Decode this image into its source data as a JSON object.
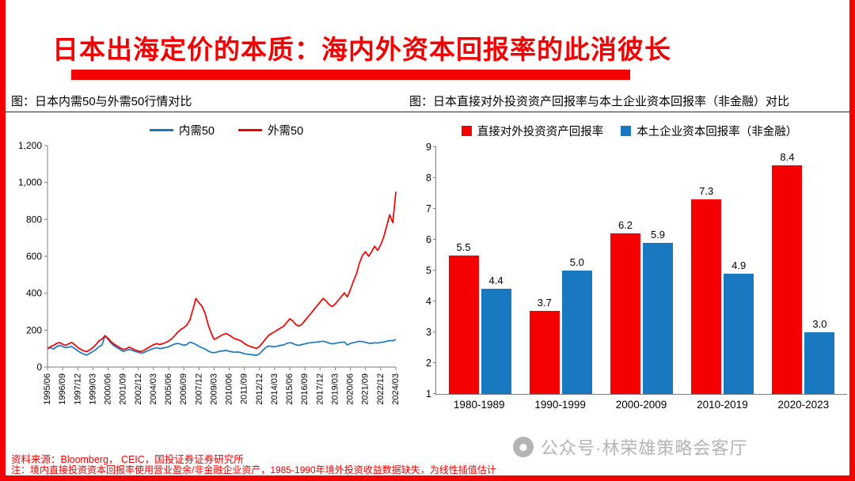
{
  "slide": {
    "title": "日本出海定价的本质：海内外资本回报率的此消彼长",
    "left_caption": "图：日本内需50与外需50行情对比",
    "right_caption": "图：日本直接对外投资资产回报率与本土企业资本回报率（非金融）对比",
    "watermark": "公众号·林荣雄策略会客厅",
    "source": "资料来源：Bloomberg， CEIC，国投证券证券研究所",
    "note": "注：境内直接投资资本回报率使用营业盈余/非金融企业资产，1985-1990年境外投资收益数据缺失，为线性插值估计"
  },
  "colors": {
    "red": "#f40000",
    "blue": "#1879c0",
    "axis": "#7f7f7f",
    "watermark_gray": "#b4b4b4"
  },
  "chart_data": [
    {
      "type": "line",
      "title": "日本内需50与外需50行情对比",
      "ylim": [
        0,
        1200
      ],
      "ytick_labels": [
        "0",
        "200",
        "400",
        "600",
        "800",
        "1,000",
        "1,200"
      ],
      "x_tick_labels": [
        "1995/06",
        "1996/09",
        "1997/12",
        "1999/03",
        "2000/06",
        "2001/09",
        "2002/12",
        "2004/03",
        "2005/06",
        "2006/09",
        "2007/12",
        "2009/03",
        "2010/06",
        "2011/09",
        "2012/12",
        "2014/03",
        "2015/06",
        "2016/09",
        "2017/12",
        "2019/03",
        "2020/06",
        "2021/09",
        "2022/12",
        "2024/03"
      ],
      "tick_every": 5,
      "grid": false,
      "legend_position": "top",
      "series": [
        {
          "name": "内需50",
          "color_key": "blue",
          "values": [
            100,
            105,
            98,
            110,
            118,
            112,
            105,
            108,
            112,
            100,
            88,
            78,
            70,
            65,
            75,
            85,
            95,
            110,
            120,
            170,
            150,
            130,
            115,
            105,
            95,
            85,
            90,
            95,
            90,
            85,
            80,
            75,
            80,
            88,
            95,
            100,
            105,
            100,
            103,
            106,
            110,
            118,
            125,
            128,
            124,
            118,
            122,
            135,
            130,
            122,
            112,
            105,
            98,
            88,
            80,
            78,
            82,
            86,
            88,
            90,
            86,
            82,
            80,
            82,
            78,
            72,
            70,
            68,
            66,
            64,
            72,
            90,
            105,
            115,
            112,
            110,
            114,
            118,
            120,
            128,
            132,
            128,
            120,
            118,
            122,
            126,
            130,
            132,
            134,
            136,
            138,
            140,
            136,
            130,
            126,
            128,
            132,
            134,
            136,
            120,
            128,
            132,
            136,
            140,
            138,
            134,
            130,
            128,
            132,
            130,
            134,
            136,
            140,
            144,
            142,
            150
          ]
        },
        {
          "name": "外需50",
          "color_key": "red",
          "values": [
            100,
            110,
            118,
            128,
            133,
            124,
            118,
            126,
            134,
            121,
            106,
            96,
            88,
            84,
            94,
            106,
            122,
            142,
            152,
            170,
            156,
            138,
            124,
            114,
            104,
            95,
            100,
            108,
            100,
            92,
            87,
            84,
            92,
            103,
            112,
            121,
            127,
            122,
            127,
            133,
            141,
            153,
            170,
            190,
            203,
            214,
            228,
            255,
            312,
            372,
            348,
            330,
            292,
            232,
            186,
            150,
            158,
            168,
            176,
            182,
            173,
            162,
            152,
            148,
            140,
            128,
            118,
            112,
            106,
            101,
            112,
            132,
            152,
            172,
            182,
            192,
            202,
            212,
            222,
            242,
            262,
            250,
            230,
            222,
            232,
            252,
            272,
            292,
            312,
            332,
            352,
            372,
            358,
            338,
            328,
            342,
            362,
            382,
            402,
            380,
            420,
            465,
            505,
            565,
            605,
            625,
            600,
            625,
            655,
            632,
            662,
            705,
            765,
            825,
            782,
            950
          ]
        }
      ]
    },
    {
      "type": "bar",
      "title": "日本直接对外投资资产回报率与本土企业资本回报率（非金融）对比",
      "categories": [
        "1980-1989",
        "1990-1999",
        "2000-2009",
        "2010-2019",
        "2020-2023"
      ],
      "ylim": [
        1,
        9
      ],
      "yticks": [
        1,
        2,
        3,
        4,
        5,
        6,
        7,
        8,
        9
      ],
      "grid": false,
      "legend_position": "top",
      "series": [
        {
          "name": "直接对外投资资产回报率",
          "color_key": "red",
          "values": [
            5.5,
            3.7,
            6.2,
            7.3,
            8.4
          ]
        },
        {
          "name": "本土企业资本回报率（非金融）",
          "color_key": "blue",
          "values": [
            4.4,
            5.0,
            5.9,
            4.9,
            3.0
          ]
        }
      ]
    }
  ]
}
